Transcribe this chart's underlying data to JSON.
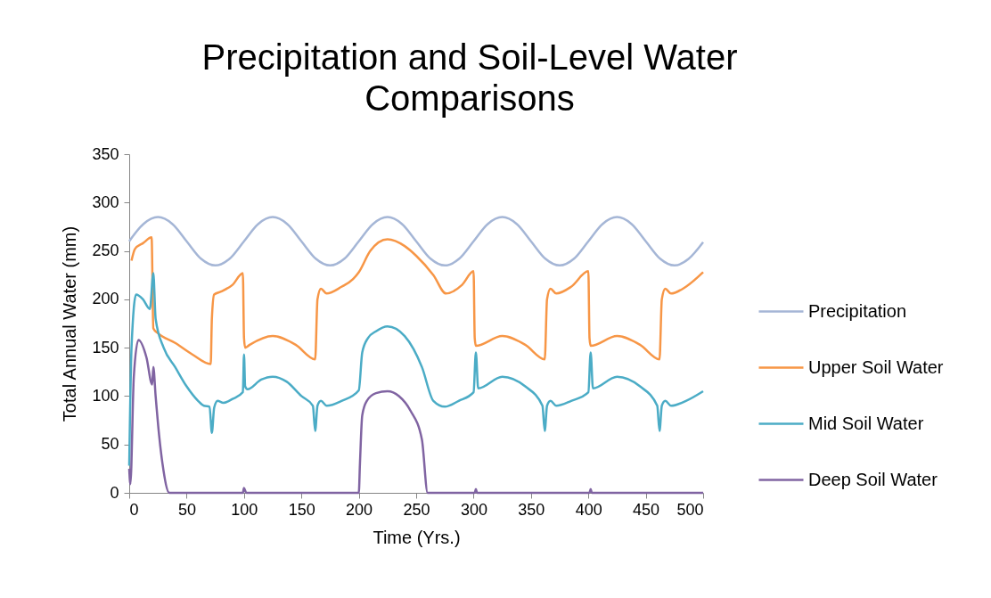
{
  "chart_data": {
    "type": "line",
    "title": "Precipitation and Soil-Level Water Comparisons",
    "xlabel": "Time (Yrs.)",
    "ylabel": "Total Annual Water (mm)",
    "xlim": [
      0,
      500
    ],
    "xticks": [
      0,
      50,
      100,
      150,
      200,
      250,
      300,
      350,
      400,
      450,
      500
    ],
    "ylim": [
      0,
      350
    ],
    "yticks": [
      0,
      50,
      100,
      150,
      200,
      250,
      300,
      350
    ],
    "grid": false,
    "legend": "right",
    "marker": "none",
    "line_style": "solid",
    "series": [
      {
        "name": "Precipitation",
        "color": "#a5b6d6",
        "x": [
          0,
          12.5,
          25,
          37.5,
          50,
          62.5,
          75,
          87.5,
          100,
          112.5,
          125,
          137.5,
          150,
          162.5,
          175,
          187.5,
          200,
          212.5,
          225,
          237.5,
          250,
          262.5,
          275,
          287.5,
          300,
          312.5,
          325,
          337.5,
          350,
          362.5,
          375,
          387.5,
          400,
          412.5,
          425,
          437.5,
          450,
          462.5,
          475,
          487.5,
          500
        ],
        "values": [
          260,
          278,
          285,
          278,
          260,
          242,
          235,
          242,
          260,
          278,
          285,
          278,
          260,
          242,
          235,
          242,
          260,
          278,
          285,
          278,
          260,
          242,
          235,
          242,
          260,
          278,
          285,
          278,
          260,
          242,
          235,
          242,
          260,
          278,
          285,
          278,
          260,
          242,
          235,
          242,
          259
        ]
      },
      {
        "name": "Upper Soil Water",
        "color": "#f79646",
        "x": [
          2,
          5,
          12,
          19.5,
          21,
          25,
          40,
          55,
          71,
          72,
          74,
          80,
          90,
          99,
          100,
          101,
          105,
          125,
          145,
          162,
          164,
          167,
          172,
          185,
          195,
          200,
          210,
          225,
          240,
          250,
          265,
          276,
          290,
          300,
          301,
          302,
          325,
          345,
          362,
          364,
          367,
          372,
          385,
          400,
          401,
          402,
          425,
          445,
          462,
          464,
          467,
          472,
          485,
          500
        ],
        "values": [
          240,
          252,
          258,
          264,
          170,
          165,
          155,
          143,
          133,
          180,
          205,
          208,
          215,
          227,
          160,
          150,
          153,
          162,
          153,
          138,
          200,
          211,
          206,
          213,
          221,
          228,
          250,
          262,
          255,
          245,
          225,
          206,
          215,
          229,
          160,
          152,
          162,
          153,
          138,
          200,
          211,
          206,
          213,
          229,
          160,
          152,
          162,
          153,
          138,
          200,
          211,
          206,
          213,
          228
        ]
      },
      {
        "name": "Mid Soil Water",
        "color": "#4bacc6",
        "x": [
          0,
          2,
          6,
          12,
          18,
          21,
          23,
          30,
          40,
          50,
          60,
          65,
          70,
          72,
          74,
          77,
          82,
          90,
          99,
          100,
          101,
          103,
          115,
          125,
          137,
          150,
          160,
          162,
          164,
          167,
          172,
          185,
          200,
          203,
          208,
          215,
          225,
          240,
          255,
          265,
          275,
          287,
          300,
          302,
          304,
          325,
          345,
          360,
          362,
          364,
          367,
          372,
          385,
          400,
          402,
          404,
          425,
          445,
          460,
          462,
          464,
          467,
          472,
          485,
          500
        ],
        "values": [
          28,
          150,
          205,
          200,
          190,
          227,
          180,
          150,
          130,
          110,
          95,
          90,
          89,
          62,
          88,
          95,
          93,
          97,
          104,
          143,
          110,
          107,
          117,
          120,
          115,
          100,
          90,
          64,
          90,
          95,
          90,
          95,
          106,
          145,
          160,
          167,
          172,
          162,
          130,
          95,
          89,
          95,
          104,
          145,
          108,
          120,
          110,
          90,
          64,
          90,
          95,
          90,
          95,
          104,
          145,
          108,
          120,
          110,
          90,
          64,
          90,
          95,
          90,
          95,
          105
        ]
      },
      {
        "name": "Deep Soil Water",
        "color": "#8064a2",
        "x": [
          0,
          1,
          4,
          8,
          15,
          20,
          21,
          23,
          26,
          29,
          35,
          99,
          100,
          102,
          200,
          201,
          203,
          207,
          215,
          225,
          235,
          245,
          255,
          260,
          301,
          302,
          303,
          401,
          402,
          403,
          500
        ],
        "values": [
          25,
          9,
          120,
          158,
          140,
          112,
          130,
          100,
          60,
          30,
          0,
          0,
          5,
          0,
          0,
          30,
          80,
          95,
          103,
          105,
          100,
          85,
          55,
          0,
          0,
          4,
          0,
          0,
          4,
          0,
          0
        ]
      }
    ]
  }
}
